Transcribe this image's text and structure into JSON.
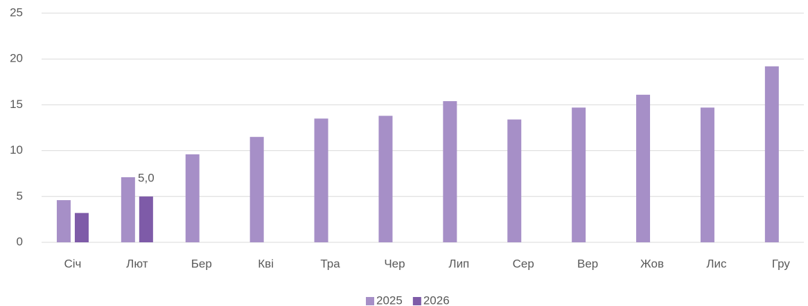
{
  "chart_data": {
    "type": "bar",
    "categories": [
      "Січ",
      "Лют",
      "Бер",
      "Кві",
      "Тра",
      "Чер",
      "Лип",
      "Сер",
      "Вер",
      "Жов",
      "Лис",
      "Гру"
    ],
    "series": [
      {
        "name": "2025",
        "color": "#a68fc7",
        "values": [
          4.6,
          7.1,
          9.6,
          11.5,
          13.5,
          13.8,
          15.4,
          13.4,
          14.7,
          16.1,
          14.7,
          19.2
        ]
      },
      {
        "name": "2026",
        "color": "#7e5ba8",
        "values": [
          3.2,
          5.0,
          null,
          null,
          null,
          null,
          null,
          null,
          null,
          null,
          null,
          null
        ],
        "value_labels": [
          null,
          "5,0",
          null,
          null,
          null,
          null,
          null,
          null,
          null,
          null,
          null,
          null
        ]
      }
    ],
    "ylim": [
      0,
      25
    ],
    "yticks": [
      0,
      5,
      10,
      15,
      20,
      25
    ],
    "grid": true,
    "legend": "bottom"
  }
}
